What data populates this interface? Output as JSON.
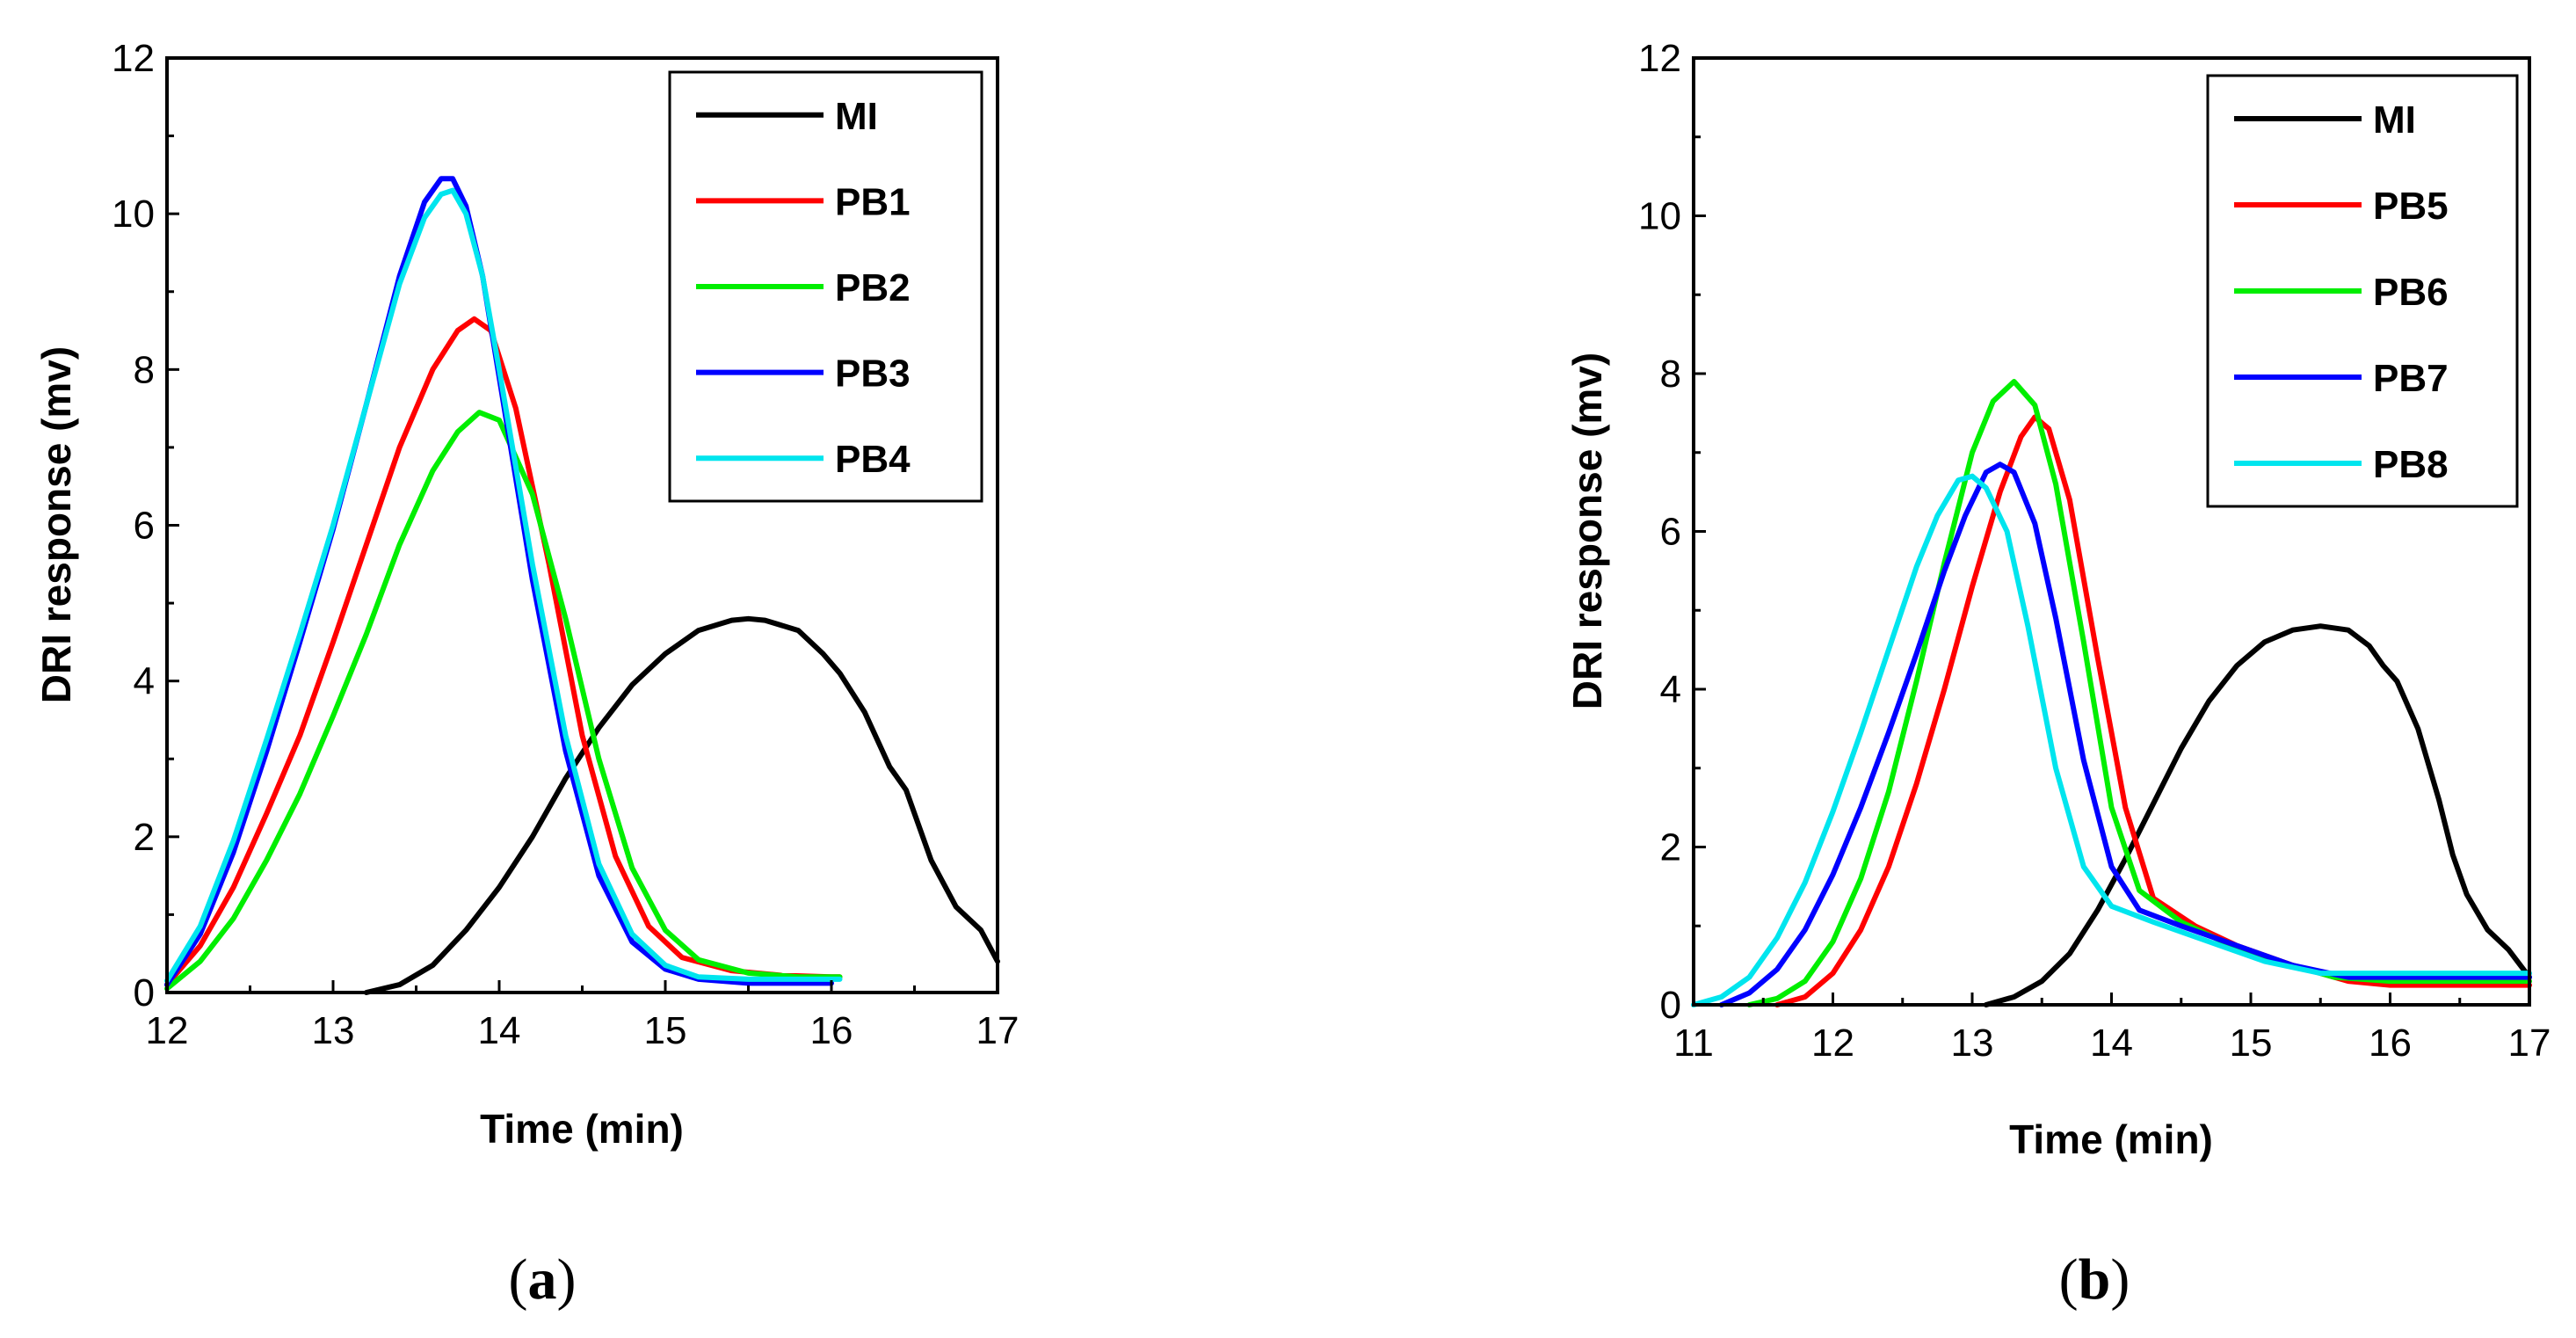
{
  "chart_data": [
    {
      "type": "line",
      "panel_label": "a",
      "xlabel": "Time (min)",
      "ylabel": "DRI response (mv)",
      "xlim": [
        12,
        17
      ],
      "ylim": [
        0,
        12
      ],
      "xticks": [
        12,
        13,
        14,
        15,
        16,
        17
      ],
      "yticks": [
        0,
        2,
        4,
        6,
        8,
        10,
        12
      ],
      "legend_position": "top-right",
      "series": [
        {
          "name": "MI",
          "color": "#000000",
          "x": [
            13.2,
            13.4,
            13.6,
            13.8,
            14.0,
            14.2,
            14.4,
            14.6,
            14.8,
            15.0,
            15.2,
            15.4,
            15.5,
            15.6,
            15.8,
            15.95,
            16.05,
            16.2,
            16.35,
            16.45,
            16.6,
            16.75,
            16.9,
            17.0
          ],
          "y": [
            0.0,
            0.1,
            0.35,
            0.8,
            1.35,
            2.0,
            2.75,
            3.4,
            3.95,
            4.35,
            4.65,
            4.78,
            4.8,
            4.78,
            4.65,
            4.35,
            4.1,
            3.6,
            2.9,
            2.6,
            1.7,
            1.1,
            0.8,
            0.4
          ]
        },
        {
          "name": "PB1",
          "color": "#ff0000",
          "x": [
            12.0,
            12.2,
            12.4,
            12.6,
            12.8,
            13.0,
            13.2,
            13.4,
            13.6,
            13.75,
            13.85,
            13.95,
            14.1,
            14.3,
            14.5,
            14.7,
            14.9,
            15.1,
            15.4,
            15.7,
            16.0,
            16.05
          ],
          "y": [
            0.1,
            0.6,
            1.35,
            2.3,
            3.3,
            4.5,
            5.75,
            7.0,
            8.0,
            8.5,
            8.65,
            8.5,
            7.5,
            5.5,
            3.3,
            1.75,
            0.85,
            0.45,
            0.28,
            0.22,
            0.2,
            0.2
          ]
        },
        {
          "name": "PB2",
          "color": "#00ee00",
          "x": [
            12.0,
            12.2,
            12.4,
            12.6,
            12.8,
            13.0,
            13.2,
            13.4,
            13.6,
            13.75,
            13.88,
            14.0,
            14.2,
            14.4,
            14.6,
            14.8,
            15.0,
            15.2,
            15.5,
            15.8,
            16.05
          ],
          "y": [
            0.05,
            0.4,
            0.95,
            1.7,
            2.55,
            3.55,
            4.6,
            5.75,
            6.7,
            7.2,
            7.45,
            7.35,
            6.4,
            4.8,
            3.0,
            1.6,
            0.8,
            0.42,
            0.25,
            0.2,
            0.2
          ]
        },
        {
          "name": "PB3",
          "color": "#0000ff",
          "x": [
            12.0,
            12.2,
            12.4,
            12.6,
            12.8,
            13.0,
            13.2,
            13.4,
            13.55,
            13.65,
            13.72,
            13.8,
            13.9,
            14.0,
            14.2,
            14.4,
            14.6,
            14.8,
            15.0,
            15.2,
            15.5,
            15.8,
            16.0
          ],
          "y": [
            0.1,
            0.75,
            1.8,
            3.1,
            4.5,
            5.95,
            7.55,
            9.2,
            10.15,
            10.45,
            10.45,
            10.1,
            9.2,
            7.9,
            5.3,
            3.1,
            1.5,
            0.65,
            0.3,
            0.17,
            0.12,
            0.12,
            0.12
          ]
        },
        {
          "name": "PB4",
          "color": "#00e5ee",
          "x": [
            12.0,
            12.2,
            12.4,
            12.6,
            12.8,
            13.0,
            13.2,
            13.4,
            13.55,
            13.65,
            13.72,
            13.8,
            13.9,
            14.0,
            14.2,
            14.4,
            14.6,
            14.8,
            15.0,
            15.2,
            15.5,
            15.8,
            16.05
          ],
          "y": [
            0.15,
            0.85,
            1.95,
            3.25,
            4.6,
            6.0,
            7.55,
            9.1,
            9.95,
            10.25,
            10.3,
            10.0,
            9.2,
            8.0,
            5.5,
            3.3,
            1.65,
            0.75,
            0.35,
            0.2,
            0.17,
            0.17,
            0.17
          ]
        }
      ],
      "legend": [
        "MI",
        "PB1",
        "PB2",
        "PB3",
        "PB4"
      ]
    },
    {
      "type": "line",
      "panel_label": "b",
      "xlabel": "Time (min)",
      "ylabel": "DRI response (mv)",
      "xlim": [
        11,
        17
      ],
      "ylim": [
        0,
        12
      ],
      "xticks": [
        11,
        12,
        13,
        14,
        15,
        16,
        17
      ],
      "yticks": [
        0,
        2,
        4,
        6,
        8,
        10,
        12
      ],
      "legend_position": "top-right",
      "series": [
        {
          "name": "MI",
          "color": "#000000",
          "x": [
            13.1,
            13.3,
            13.5,
            13.7,
            13.9,
            14.1,
            14.3,
            14.5,
            14.7,
            14.9,
            15.1,
            15.3,
            15.5,
            15.7,
            15.85,
            15.95,
            16.05,
            16.2,
            16.35,
            16.45,
            16.55,
            16.7,
            16.85,
            17.0
          ],
          "y": [
            0.0,
            0.1,
            0.3,
            0.65,
            1.2,
            1.85,
            2.55,
            3.25,
            3.85,
            4.3,
            4.6,
            4.75,
            4.8,
            4.75,
            4.55,
            4.3,
            4.1,
            3.5,
            2.6,
            1.9,
            1.4,
            0.95,
            0.7,
            0.35
          ]
        },
        {
          "name": "PB5",
          "color": "#ff0000",
          "x": [
            11.6,
            11.8,
            12.0,
            12.2,
            12.4,
            12.6,
            12.8,
            13.0,
            13.2,
            13.35,
            13.45,
            13.55,
            13.7,
            13.9,
            14.1,
            14.3,
            14.6,
            14.9,
            15.3,
            15.7,
            16.0,
            16.5,
            17.0
          ],
          "y": [
            0.0,
            0.1,
            0.4,
            0.95,
            1.75,
            2.8,
            4.0,
            5.3,
            6.5,
            7.2,
            7.45,
            7.3,
            6.4,
            4.4,
            2.5,
            1.35,
            1.0,
            0.75,
            0.5,
            0.3,
            0.25,
            0.25,
            0.25
          ]
        },
        {
          "name": "PB6",
          "color": "#00ee00",
          "x": [
            11.4,
            11.6,
            11.8,
            12.0,
            12.2,
            12.4,
            12.6,
            12.8,
            13.0,
            13.15,
            13.3,
            13.45,
            13.6,
            13.8,
            14.0,
            14.2,
            14.5,
            14.8,
            15.2,
            15.6,
            16.0,
            16.5,
            17.0
          ],
          "y": [
            0.0,
            0.08,
            0.3,
            0.8,
            1.6,
            2.7,
            4.1,
            5.6,
            7.0,
            7.65,
            7.9,
            7.6,
            6.6,
            4.6,
            2.5,
            1.45,
            1.05,
            0.8,
            0.55,
            0.35,
            0.3,
            0.3,
            0.3
          ]
        },
        {
          "name": "PB7",
          "color": "#0000ff",
          "x": [
            11.2,
            11.4,
            11.6,
            11.8,
            12.0,
            12.2,
            12.4,
            12.6,
            12.8,
            12.95,
            13.1,
            13.2,
            13.3,
            13.45,
            13.6,
            13.8,
            14.0,
            14.2,
            14.5,
            14.9,
            15.3,
            15.7,
            16.0,
            16.5,
            17.0
          ],
          "y": [
            0.0,
            0.15,
            0.45,
            0.95,
            1.65,
            2.5,
            3.45,
            4.45,
            5.5,
            6.2,
            6.75,
            6.85,
            6.75,
            6.1,
            4.9,
            3.1,
            1.75,
            1.2,
            1.0,
            0.75,
            0.5,
            0.35,
            0.35,
            0.35,
            0.35
          ]
        },
        {
          "name": "PB8",
          "color": "#00e5ee",
          "x": [
            11.0,
            11.2,
            11.4,
            11.6,
            11.8,
            12.0,
            12.2,
            12.4,
            12.6,
            12.75,
            12.9,
            13.0,
            13.1,
            13.25,
            13.4,
            13.6,
            13.8,
            14.0,
            14.3,
            14.7,
            15.1,
            15.5,
            16.0,
            16.5,
            17.0
          ],
          "y": [
            0.0,
            0.1,
            0.35,
            0.85,
            1.55,
            2.45,
            3.45,
            4.5,
            5.55,
            6.2,
            6.65,
            6.7,
            6.55,
            6.0,
            4.8,
            3.0,
            1.75,
            1.25,
            1.05,
            0.8,
            0.55,
            0.4,
            0.4,
            0.4,
            0.4
          ]
        }
      ],
      "legend": [
        "MI",
        "PB5",
        "PB6",
        "PB7",
        "PB8"
      ]
    }
  ],
  "captions": {
    "a": {
      "open": "(",
      "letter": "a",
      "close": ")"
    },
    "b": {
      "open": "(",
      "letter": "b",
      "close": ")"
    }
  }
}
